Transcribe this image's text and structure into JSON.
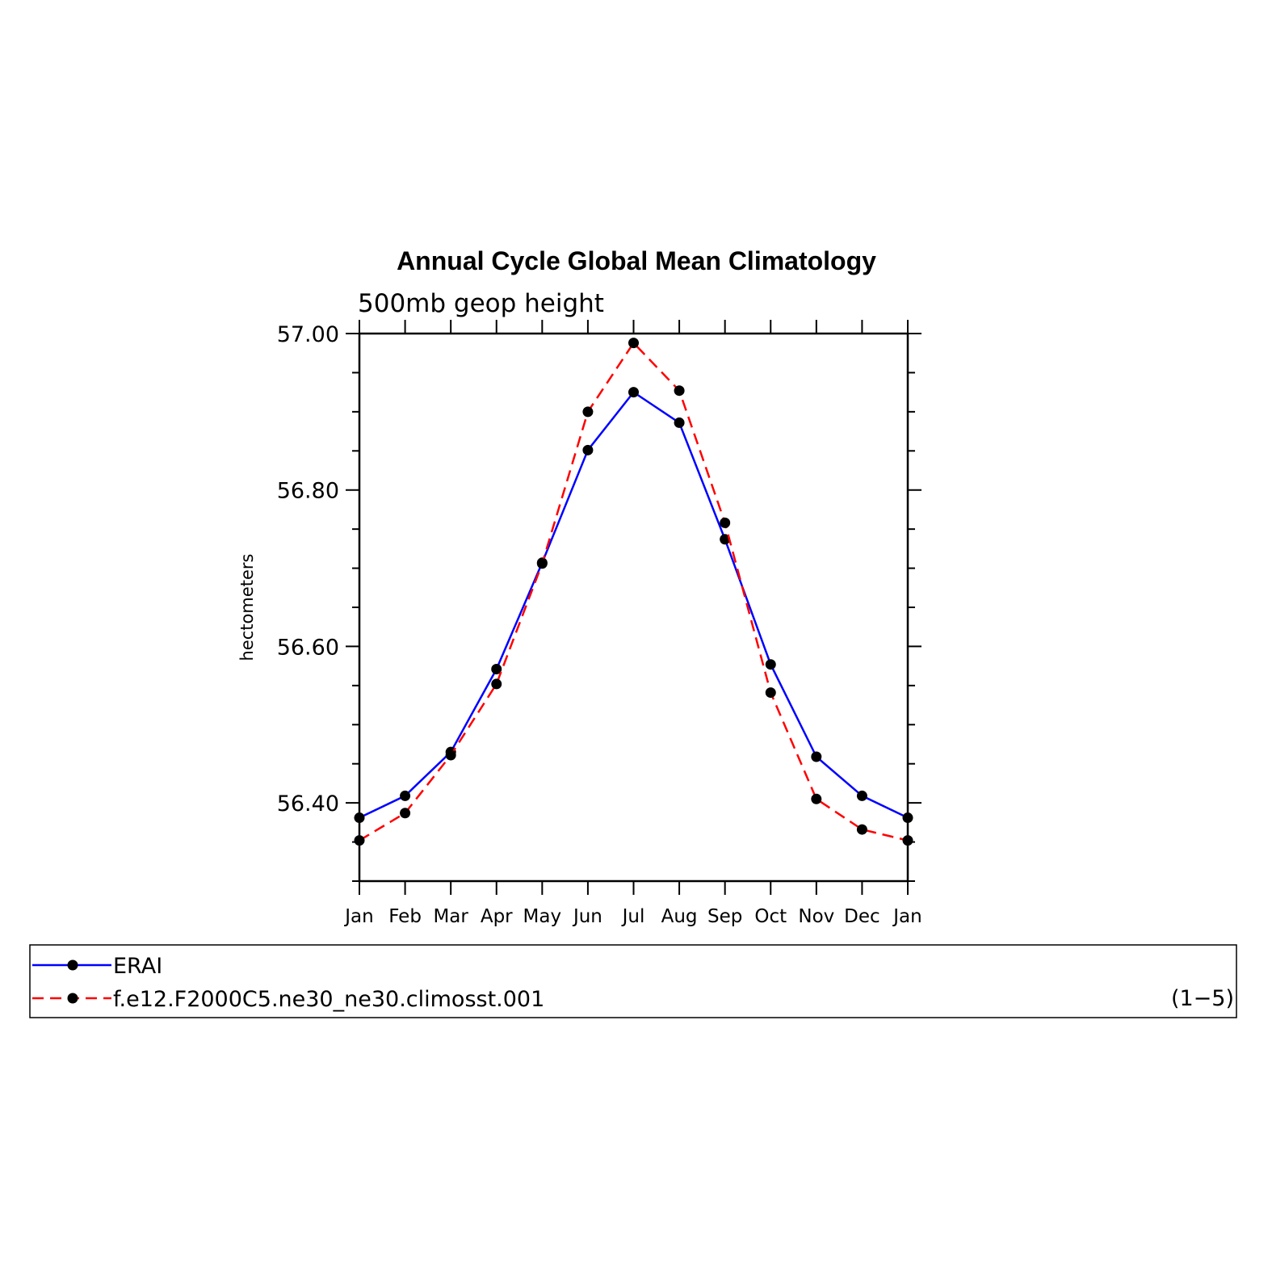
{
  "chart_data": {
    "type": "line",
    "title": "Annual Cycle Global Mean Climatology",
    "subtitle": "500mb geop height",
    "ylabel": "hectometers",
    "categories": [
      "Jan",
      "Feb",
      "Mar",
      "Apr",
      "May",
      "Jun",
      "Jul",
      "Aug",
      "Sep",
      "Oct",
      "Nov",
      "Dec",
      "Jan"
    ],
    "ylim": [
      56.3,
      57.0
    ],
    "yticks": [
      "56.40",
      "56.60",
      "56.80",
      "57.00"
    ],
    "series": [
      {
        "name": "ERAI",
        "color": "#0000ff",
        "style": "solid",
        "marker": "filled-circle",
        "values": [
          56.381,
          56.409,
          56.465,
          56.571,
          56.707,
          56.851,
          56.925,
          56.886,
          56.737,
          56.577,
          56.459,
          56.409,
          56.381
        ]
      },
      {
        "name": "f.e12.F2000C5.ne30_ne30.climosst.001",
        "color": "#ff0000",
        "style": "dashed",
        "marker": "filled-circle",
        "values": [
          56.352,
          56.387,
          56.461,
          56.552,
          56.706,
          56.9,
          56.988,
          56.927,
          56.758,
          56.541,
          56.405,
          56.366,
          56.352
        ]
      }
    ],
    "legend": {
      "position": "bottom",
      "note": "(1−5)"
    },
    "grid": false
  }
}
